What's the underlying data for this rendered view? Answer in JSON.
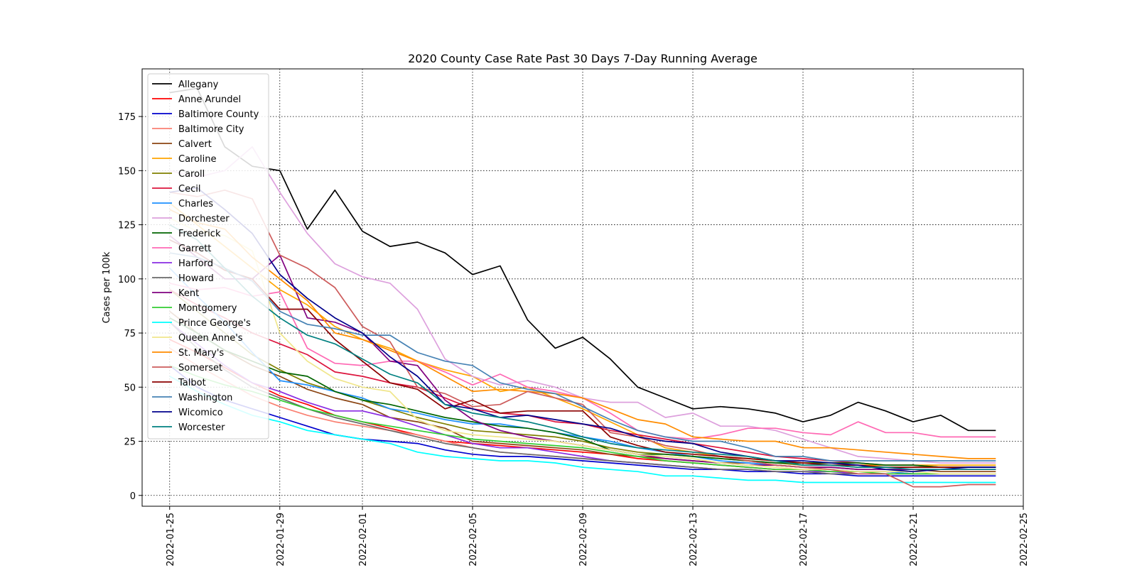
{
  "chart_data": {
    "type": "line",
    "title": "2020 County Case Rate  Past 30 Days 7-Day Running Average",
    "xlabel": "",
    "ylabel": "Cases per 100k",
    "xlim": [
      "2022-01-24",
      "2022-02-25"
    ],
    "ylim": [
      -5,
      197
    ],
    "grid": true,
    "legend_position": "upper-left",
    "x_ticks": [
      "2022-01-25",
      "2022-01-29",
      "2022-02-01",
      "2022-02-05",
      "2022-02-09",
      "2022-02-13",
      "2022-02-17",
      "2022-02-21",
      "2022-02-25"
    ],
    "y_ticks": [
      0,
      25,
      50,
      75,
      100,
      125,
      150,
      175
    ],
    "x": [
      "2022-01-25",
      "2022-01-26",
      "2022-01-27",
      "2022-01-28",
      "2022-01-29",
      "2022-01-30",
      "2022-01-31",
      "2022-02-01",
      "2022-02-02",
      "2022-02-03",
      "2022-02-04",
      "2022-02-05",
      "2022-02-06",
      "2022-02-07",
      "2022-02-08",
      "2022-02-09",
      "2022-02-10",
      "2022-02-11",
      "2022-02-12",
      "2022-02-13",
      "2022-02-14",
      "2022-02-15",
      "2022-02-16",
      "2022-02-17",
      "2022-02-18",
      "2022-02-19",
      "2022-02-20",
      "2022-02-21",
      "2022-02-22",
      "2022-02-23",
      "2022-02-24"
    ],
    "series": [
      {
        "name": "Allegany",
        "color": "#000000",
        "values": [
          186,
          188,
          161,
          152,
          150,
          123,
          141,
          122,
          115,
          117,
          112,
          102,
          106,
          81,
          68,
          73,
          63,
          50,
          45,
          40,
          41,
          40,
          38,
          34,
          37,
          43,
          39,
          34,
          37,
          30,
          30
        ]
      },
      {
        "name": "Anne Arundel",
        "color": "#ff0000",
        "values": [
          72,
          66,
          59,
          52,
          46,
          42,
          37,
          34,
          31,
          28,
          25,
          24,
          23,
          22,
          21,
          20,
          19,
          17,
          16,
          15,
          14,
          13,
          12,
          12,
          11,
          11,
          11,
          10,
          10,
          10,
          10
        ]
      },
      {
        "name": "Baltimore County",
        "color": "#0000cd",
        "values": [
          60,
          50,
          44,
          40,
          36,
          32,
          28,
          26,
          25,
          24,
          21,
          19,
          18,
          18,
          17,
          16,
          15,
          14,
          13,
          12,
          12,
          11,
          11,
          10,
          10,
          9,
          9,
          9,
          9,
          9,
          9
        ]
      },
      {
        "name": "Baltimore City",
        "color": "#fa8072",
        "values": [
          68,
          60,
          53,
          46,
          41,
          37,
          34,
          32,
          30,
          28,
          25,
          22,
          20,
          19,
          18,
          17,
          16,
          15,
          14,
          13,
          12,
          12,
          11,
          11,
          10,
          10,
          10,
          10,
          10,
          10,
          10
        ]
      },
      {
        "name": "Calvert",
        "color": "#8b4513",
        "values": [
          85,
          75,
          67,
          60,
          55,
          49,
          45,
          42,
          36,
          34,
          31,
          25,
          24,
          23,
          22,
          21,
          19,
          18,
          17,
          16,
          15,
          15,
          14,
          13,
          13,
          12,
          12,
          12,
          11,
          11,
          11
        ]
      },
      {
        "name": "Caroline",
        "color": "#ffa500",
        "values": [
          135,
          125,
          115,
          105,
          95,
          88,
          78,
          72,
          68,
          62,
          58,
          55,
          48,
          50,
          45,
          40,
          34,
          28,
          22,
          20,
          18,
          17,
          16,
          15,
          15,
          14,
          14,
          14,
          14,
          14,
          14
        ]
      },
      {
        "name": "Caroll",
        "color": "#808000",
        "values": [
          95,
          85,
          75,
          65,
          58,
          52,
          48,
          44,
          40,
          36,
          33,
          30,
          29,
          28,
          27,
          25,
          22,
          20,
          19,
          18,
          17,
          16,
          15,
          14,
          14,
          13,
          13,
          13,
          13,
          13,
          13
        ]
      },
      {
        "name": "Cecil",
        "color": "#dc143c",
        "values": [
          95,
          88,
          82,
          75,
          70,
          65,
          57,
          55,
          52,
          50,
          45,
          40,
          38,
          37,
          34,
          33,
          30,
          28,
          26,
          24,
          22,
          20,
          18,
          17,
          16,
          15,
          14,
          14,
          13,
          13,
          13
        ]
      },
      {
        "name": "Charles",
        "color": "#1e90ff",
        "values": [
          105,
          92,
          80,
          66,
          53,
          51,
          48,
          45,
          40,
          38,
          35,
          33,
          33,
          31,
          29,
          27,
          25,
          22,
          20,
          18,
          16,
          15,
          14,
          13,
          12,
          11,
          11,
          10,
          10,
          10,
          10
        ]
      },
      {
        "name": "Dorchester",
        "color": "#dda0dd",
        "values": [
          150,
          147,
          150,
          161,
          140,
          121,
          107,
          101,
          98,
          86,
          63,
          55,
          51,
          53,
          50,
          45,
          43,
          43,
          36,
          38,
          32,
          32,
          30,
          26,
          22,
          18,
          17,
          16,
          15,
          15,
          15
        ]
      },
      {
        "name": "Frederick",
        "color": "#006400",
        "values": [
          82,
          75,
          67,
          62,
          57,
          55,
          48,
          44,
          42,
          39,
          36,
          34,
          32,
          31,
          29,
          26,
          21,
          19,
          19,
          18,
          17,
          16,
          15,
          15,
          15,
          15,
          14,
          14,
          13,
          13,
          13
        ]
      },
      {
        "name": "Garrett",
        "color": "#ff69b4",
        "values": [
          98,
          95,
          96,
          92,
          94,
          68,
          61,
          60,
          62,
          62,
          57,
          51,
          56,
          50,
          48,
          45,
          38,
          30,
          27,
          26,
          28,
          31,
          31,
          29,
          28,
          34,
          29,
          29,
          27,
          27,
          27
        ]
      },
      {
        "name": "Harford",
        "color": "#8a2be2",
        "values": [
          80,
          70,
          60,
          52,
          48,
          43,
          39,
          39,
          36,
          32,
          28,
          24,
          22,
          22,
          20,
          18,
          16,
          15,
          14,
          13,
          12,
          12,
          11,
          11,
          11,
          10,
          10,
          10,
          10,
          10,
          10
        ]
      },
      {
        "name": "Howard",
        "color": "#696969",
        "values": [
          80,
          68,
          58,
          50,
          45,
          40,
          36,
          33,
          30,
          27,
          24,
          22,
          20,
          19,
          18,
          17,
          16,
          15,
          14,
          13,
          12,
          12,
          11,
          11,
          10,
          10,
          10,
          10,
          10,
          10,
          10
        ]
      },
      {
        "name": "Kent",
        "color": "#800080",
        "values": [
          120,
          110,
          100,
          100,
          111,
          82,
          80,
          75,
          62,
          60,
          44,
          35,
          30,
          27,
          25,
          23,
          21,
          19,
          17,
          16,
          15,
          14,
          14,
          13,
          13,
          12,
          12,
          12,
          12,
          12,
          12
        ]
      },
      {
        "name": "Montgomery",
        "color": "#32cd32",
        "values": [
          60,
          55,
          51,
          48,
          44,
          40,
          37,
          34,
          32,
          30,
          28,
          26,
          25,
          24,
          23,
          22,
          20,
          18,
          16,
          15,
          14,
          13,
          12,
          12,
          11,
          11,
          10,
          10,
          10,
          10,
          10
        ]
      },
      {
        "name": "Prince George's",
        "color": "#00ffff",
        "values": [
          55,
          48,
          42,
          37,
          34,
          30,
          28,
          26,
          24,
          20,
          18,
          17,
          16,
          16,
          15,
          13,
          12,
          11,
          9,
          9,
          8,
          7,
          7,
          6,
          6,
          6,
          6,
          6,
          6,
          6,
          6
        ]
      },
      {
        "name": "Queen Anne's",
        "color": "#f0e68c",
        "values": [
          128,
          122,
          120,
          113,
          75,
          62,
          54,
          50,
          48,
          35,
          30,
          28,
          27,
          26,
          25,
          23,
          21,
          19,
          18,
          17,
          15,
          14,
          13,
          12,
          12,
          11,
          11,
          11,
          10,
          10,
          10
        ]
      },
      {
        "name": "St. Mary's",
        "color": "#ff8c00",
        "values": [
          132,
          126,
          123,
          110,
          100,
          90,
          75,
          72,
          67,
          62,
          55,
          48,
          49,
          48,
          47,
          45,
          40,
          35,
          33,
          27,
          26,
          25,
          25,
          22,
          22,
          21,
          20,
          19,
          18,
          17,
          17
        ]
      },
      {
        "name": "Somerset",
        "color": "#cd5c5c",
        "values": [
          140,
          138,
          141,
          137,
          111,
          105,
          96,
          78,
          71,
          50,
          47,
          41,
          42,
          48,
          45,
          42,
          29,
          27,
          23,
          21,
          18,
          16,
          14,
          13,
          12,
          10,
          10,
          4,
          4,
          5,
          5
        ]
      },
      {
        "name": "Talbot",
        "color": "#8b0000",
        "values": [
          118,
          112,
          104,
          100,
          86,
          86,
          72,
          62,
          52,
          49,
          40,
          44,
          38,
          39,
          39,
          39,
          27,
          23,
          20,
          19,
          18,
          17,
          16,
          15,
          14,
          14,
          13,
          13,
          13,
          13,
          13
        ]
      },
      {
        "name": "Washington",
        "color": "#4682b4",
        "values": [
          112,
          110,
          105,
          99,
          85,
          79,
          77,
          74,
          74,
          66,
          62,
          60,
          52,
          49,
          47,
          41,
          35,
          30,
          27,
          25,
          25,
          22,
          18,
          18,
          16,
          16,
          16,
          16,
          16,
          16,
          16
        ]
      },
      {
        "name": "Wicomico",
        "color": "#00008b",
        "values": [
          140,
          142,
          132,
          121,
          102,
          91,
          82,
          75,
          64,
          55,
          42,
          40,
          36,
          37,
          35,
          33,
          31,
          27,
          25,
          24,
          20,
          18,
          16,
          16,
          15,
          14,
          12,
          11,
          12,
          13,
          13
        ]
      },
      {
        "name": "Worcester",
        "color": "#008080",
        "values": [
          125,
          118,
          105,
          92,
          82,
          74,
          70,
          63,
          56,
          52,
          42,
          38,
          36,
          34,
          31,
          27,
          24,
          22,
          21,
          20,
          19,
          18,
          16,
          14,
          14,
          13,
          13,
          12,
          12,
          12,
          12
        ]
      }
    ]
  }
}
